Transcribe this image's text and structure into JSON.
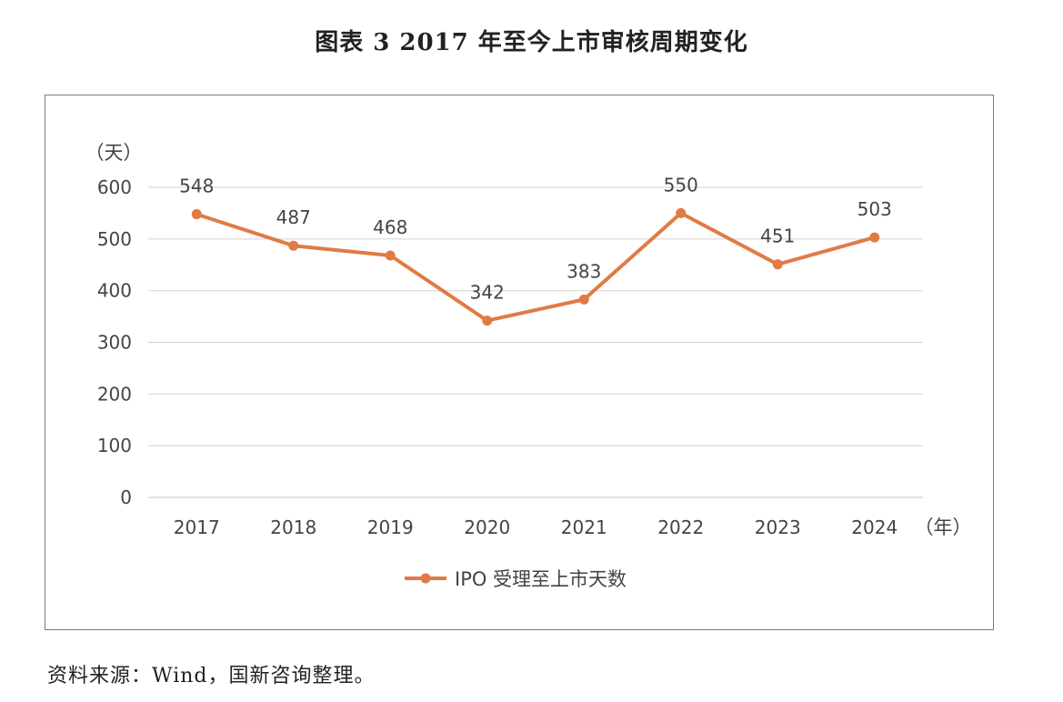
{
  "figure_title": "图表 3  2017 年至今上市审核周期变化",
  "source_note": "资料来源：Wind，国新咨询整理。",
  "chart_data": {
    "type": "line",
    "title": "",
    "ylabel": "（天）",
    "xlabel": "（年）",
    "categories": [
      "2017",
      "2018",
      "2019",
      "2020",
      "2021",
      "2022",
      "2023",
      "2024"
    ],
    "yticks": [
      "0",
      "100",
      "200",
      "300",
      "400",
      "500",
      "600"
    ],
    "ylim": [
      0,
      600
    ],
    "grid": true,
    "legend_position": "bottom",
    "series": [
      {
        "name": "IPO 受理至上市天数",
        "color": "#E07B45",
        "values": [
          548,
          487,
          468,
          342,
          383,
          550,
          451,
          503
        ],
        "labels": [
          "548",
          "487",
          "468",
          "342",
          "383",
          "550",
          "451",
          "503"
        ]
      }
    ]
  }
}
